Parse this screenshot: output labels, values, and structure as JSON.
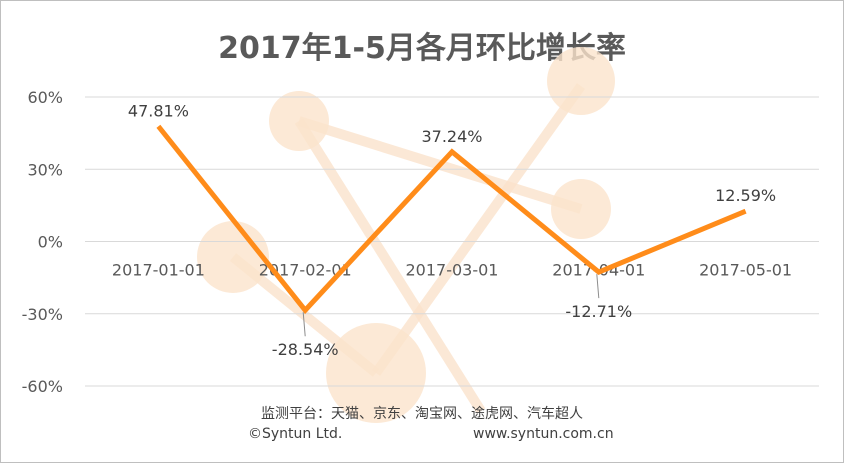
{
  "chart_data": {
    "type": "line",
    "title": "2017年1-5月各月环比增长率",
    "categories": [
      "2017-01-01",
      "2017-02-01",
      "2017-03-01",
      "2017-04-01",
      "2017-05-01"
    ],
    "series": [
      {
        "values": [
          47.81,
          -28.54,
          37.24,
          -12.71,
          12.59
        ],
        "labels": [
          "47.81%",
          "-28.54%",
          "37.24%",
          "-12.71%",
          "12.59%"
        ]
      }
    ],
    "yticks": [
      "60%",
      "30%",
      "0%",
      "-30%",
      "-60%"
    ],
    "ylim": [
      -60,
      60
    ],
    "grid": true,
    "legend": "none",
    "colors": {
      "line": "#ff8c1a",
      "grid": "#d9d9d9",
      "watermark": "#fbe3cc"
    }
  },
  "footer": {
    "sources": "监测平台：天猫、京东、淘宝网、途虎网、汽车超人",
    "copyright": "©Syntun Ltd.",
    "website": "www.syntun.com.cn"
  }
}
